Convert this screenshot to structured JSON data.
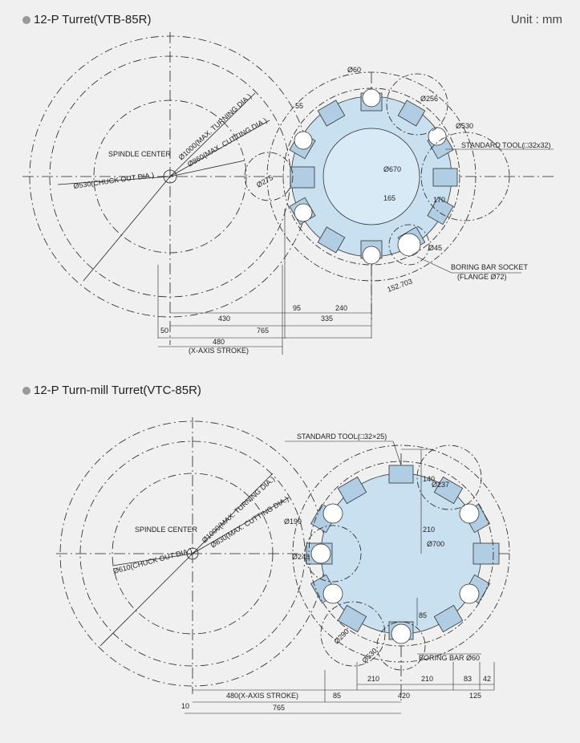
{
  "unit_label": "Unit : mm",
  "diagram1": {
    "title": "12-P Turret(VTB-85R)",
    "labels": {
      "spindle_center": "SPINDLE CENTER",
      "max_turning": "Ø1000(MAX. TURNING DIA.)",
      "max_cutting": "Ø860(MAX. CUTTING DIA.)",
      "chuck_out": "Ø530(CHUCK OUT DIA.)",
      "d275": "Ø275",
      "d60": "Ø60",
      "dim55": "55",
      "d256": "Ø256",
      "d530": "Ø530",
      "standard_tool": "STANDARD TOOL(□32x32)",
      "d670": "Ø670",
      "dim165": "165",
      "dim170": "170",
      "d45": "Ø45",
      "boring_socket": "BORING BAR SOCKET",
      "flange": "(FLANGE Ø72)",
      "dim152": "152.703",
      "dim95": "95",
      "dim240": "240",
      "dim430": "430",
      "dim335": "335",
      "dim50": "50",
      "dim765": "765",
      "dim480": "480",
      "x_axis": "(X-AXIS STROKE)"
    }
  },
  "diagram2": {
    "title": "12-P Turn-mill Turret(VTC-85R)",
    "labels": {
      "standard_tool": "STANDARD TOOL(□32×25)",
      "spindle_center": "SPINDLE CENTER",
      "max_turning": "Ø1000(MAX. TURNING DIA.)",
      "max_cutting": "Ø830(MAX. CUTTING DIA.)",
      "chuck_out": "Ø610(CHUCK OUT DIA.)",
      "d199": "Ø199",
      "d237": "Ø237",
      "dim140": "140",
      "dim210v": "210",
      "d700": "Ø700",
      "d248": "Ø248",
      "dim85v": "85",
      "d290": "Ø290",
      "d530": "Ø530",
      "boring_bar": "BORING BAR Ø60",
      "dim210a": "210",
      "dim210b": "210",
      "dim83": "83",
      "dim42": "42",
      "dim480": "480(X-AXIS STROKE)",
      "dim85": "85",
      "dim420": "420",
      "dim125": "125",
      "dim10": "10",
      "dim765": "765"
    }
  }
}
